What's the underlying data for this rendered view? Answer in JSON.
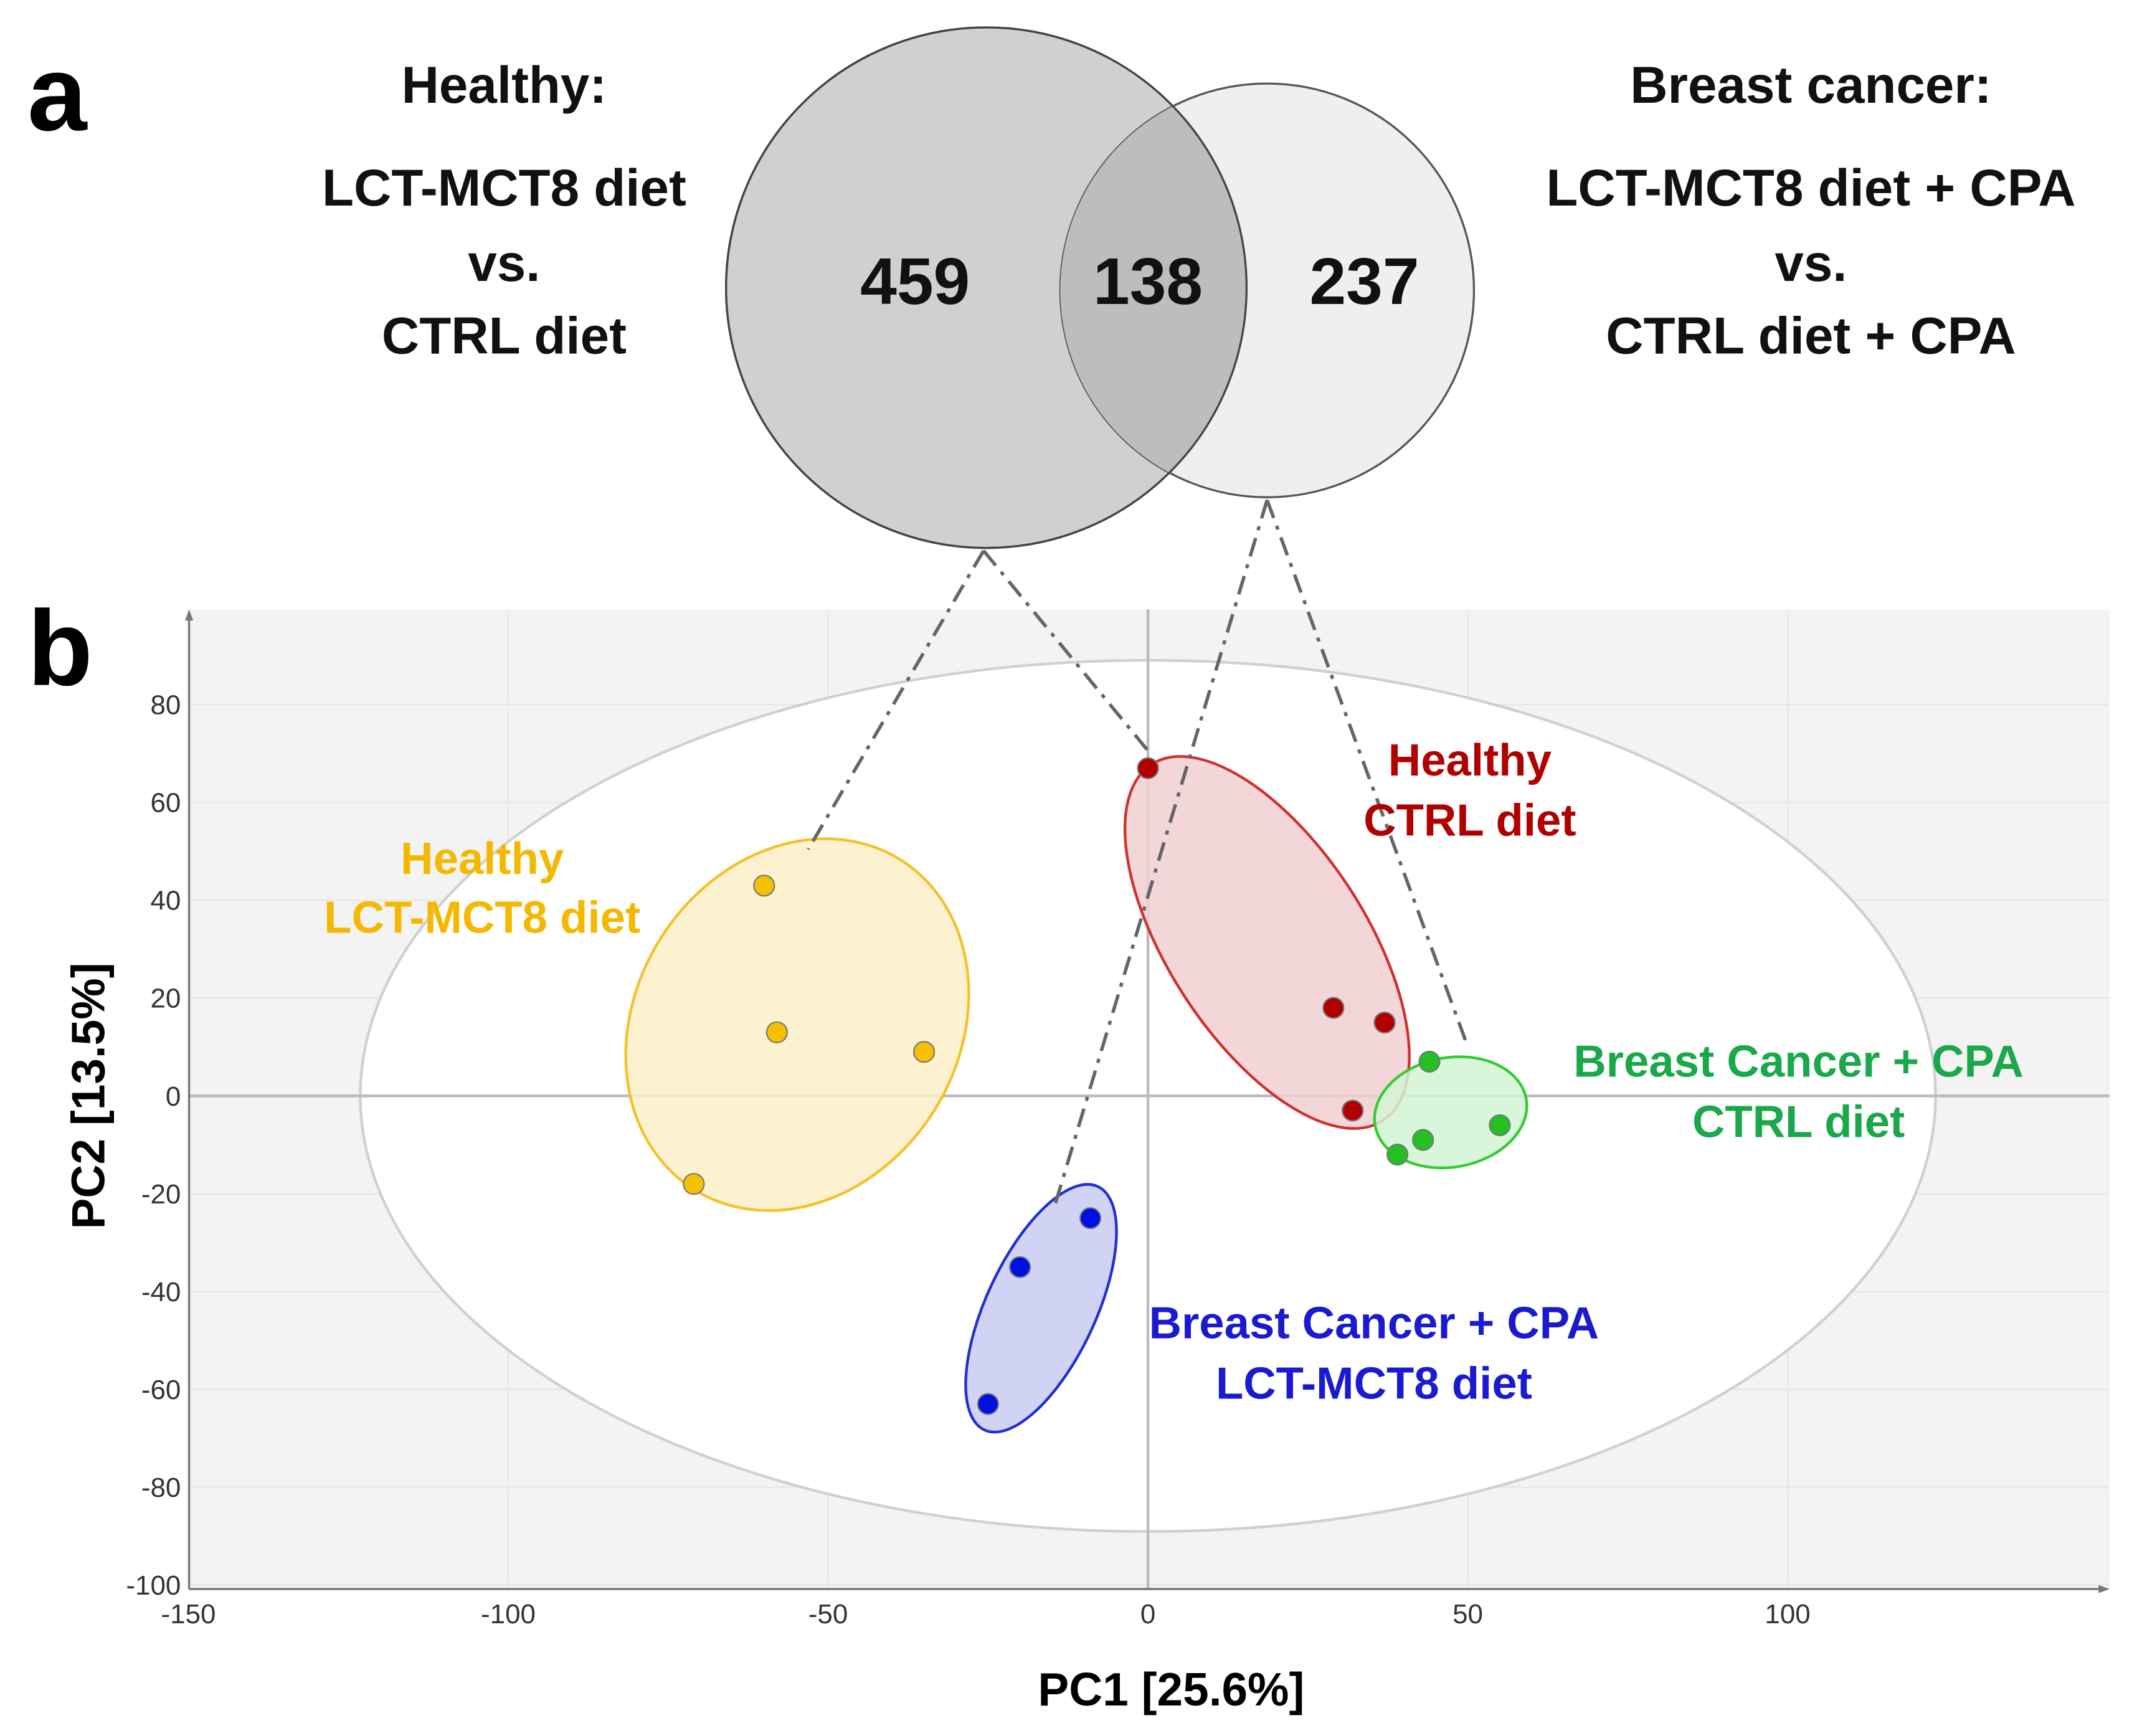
{
  "panel_a": {
    "label": "a",
    "left_title": [
      "Healthy:",
      "LCT-MCT8 diet",
      "vs.",
      "CTRL diet"
    ],
    "right_title": [
      "Breast cancer:",
      "LCT-MCT8 diet + CPA",
      "vs.",
      "CTRL diet + CPA"
    ],
    "venn": {
      "left_only": "459",
      "overlap": "138",
      "right_only": "237"
    }
  },
  "chart_data": {
    "type": "scatter",
    "panel_label": "b",
    "xlabel": "PC1 [25.6%]",
    "ylabel": "PC2 [13.5%]",
    "xlim": [
      -150,
      150
    ],
    "ylim": [
      -100,
      100
    ],
    "xticks": [
      -150,
      -100,
      -50,
      0,
      50,
      100
    ],
    "yticks": [
      80,
      60,
      40,
      20,
      0,
      -20,
      -40,
      -60,
      -80,
      -100
    ],
    "grid": true,
    "series": [
      {
        "name": "Healthy LCT-MCT8 diet",
        "label": [
          "Healthy",
          "LCT-MCT8 diet"
        ],
        "color": "#f5c000",
        "fill": "#fdf0c8",
        "stroke": "#f5c02a",
        "points": [
          [
            -60,
            43
          ],
          [
            -58,
            13
          ],
          [
            -35,
            9
          ],
          [
            -71,
            -18
          ]
        ]
      },
      {
        "name": "Healthy CTRL diet",
        "label": [
          "Healthy",
          "CTRL diet"
        ],
        "color": "#b00000",
        "fill": "#f1cfd0",
        "stroke": "#d03030",
        "points": [
          [
            0,
            67
          ],
          [
            29,
            18
          ],
          [
            37,
            15
          ],
          [
            32,
            -3
          ]
        ]
      },
      {
        "name": "Breast Cancer + CPA CTRL diet",
        "label": [
          "Breast Cancer + CPA",
          "CTRL diet"
        ],
        "color": "#22c022",
        "fill": "#d4f4d4",
        "stroke": "#33cc33",
        "points": [
          [
            44,
            7
          ],
          [
            55,
            -6
          ],
          [
            43,
            -9
          ],
          [
            39,
            -12
          ]
        ]
      },
      {
        "name": "Breast Cancer + CPA LCT-MCT8 diet",
        "label": [
          "Breast Cancer + CPA",
          "LCT-MCT8 diet"
        ],
        "color": "#0010e0",
        "fill": "#c8cbf2",
        "stroke": "#2030d0",
        "points": [
          [
            -9,
            -25
          ],
          [
            -20,
            -35
          ],
          [
            -25,
            -63
          ]
        ]
      }
    ],
    "label_colors": [
      "#f5b800",
      "#b00000",
      "#1aa84a",
      "#1a1ad0"
    ]
  }
}
